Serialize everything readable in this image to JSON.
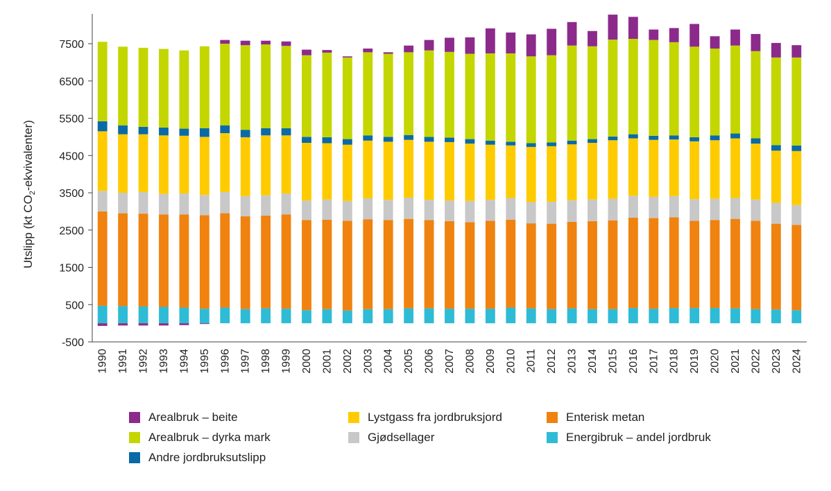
{
  "chart_data": {
    "type": "bar",
    "stacked": true,
    "ylabel_prefix": "Utslipp (kt CO",
    "ylabel_sub": "2",
    "ylabel_suffix": "-ekvivalenter)",
    "xlabel": "",
    "ylim": [
      -500,
      8300
    ],
    "yticks": [
      -500,
      500,
      1500,
      2500,
      3500,
      4500,
      5500,
      6500,
      7500
    ],
    "grid": false,
    "legend_position": "bottom",
    "categories": [
      "1990",
      "1991",
      "1992",
      "1993",
      "1994",
      "1995",
      "1996",
      "1997",
      "1998",
      "1999",
      "2000",
      "2001",
      "2002",
      "2003",
      "2004",
      "2005",
      "2006",
      "2007",
      "2008",
      "2009",
      "2010",
      "2011",
      "2012",
      "2013",
      "2014",
      "2015",
      "2016",
      "2017",
      "2018",
      "2019",
      "2020",
      "2021",
      "2022",
      "2023",
      "2024"
    ],
    "series": [
      {
        "name": "Energibruk – andel jordbruk",
        "color": "#2ebbd6",
        "values": [
          470,
          460,
          450,
          440,
          420,
          390,
          420,
          380,
          400,
          390,
          350,
          380,
          340,
          380,
          380,
          400,
          400,
          390,
          390,
          390,
          420,
          400,
          380,
          400,
          380,
          380,
          410,
          390,
          410,
          410,
          410,
          400,
          380,
          370,
          350
        ]
      },
      {
        "name": "Enterisk metan",
        "color": "#f0820f",
        "values": [
          2530,
          2490,
          2490,
          2480,
          2500,
          2510,
          2530,
          2490,
          2490,
          2530,
          2420,
          2400,
          2410,
          2410,
          2390,
          2400,
          2370,
          2350,
          2320,
          2360,
          2360,
          2280,
          2290,
          2320,
          2360,
          2380,
          2420,
          2430,
          2430,
          2340,
          2360,
          2400,
          2370,
          2300,
          2290
        ]
      },
      {
        "name": "Gjødsellager",
        "color": "#c8c8c8",
        "values": [
          550,
          550,
          580,
          550,
          560,
          540,
          570,
          540,
          540,
          560,
          520,
          540,
          530,
          560,
          540,
          570,
          540,
          550,
          570,
          560,
          580,
          570,
          590,
          580,
          580,
          580,
          590,
          570,
          570,
          580,
          570,
          560,
          570,
          560,
          530
        ]
      },
      {
        "name": "Lystgass fra jordbruksjord",
        "color": "#fecb00",
        "values": [
          1600,
          1570,
          1550,
          1570,
          1550,
          1560,
          1580,
          1580,
          1610,
          1560,
          1550,
          1510,
          1510,
          1550,
          1560,
          1550,
          1560,
          1570,
          1540,
          1480,
          1410,
          1480,
          1490,
          1500,
          1520,
          1570,
          1540,
          1530,
          1520,
          1550,
          1570,
          1600,
          1500,
          1400,
          1450
        ]
      },
      {
        "name": "Andre jordbruksutslipp",
        "color": "#0b6aa6",
        "values": [
          270,
          240,
          200,
          210,
          190,
          230,
          210,
          200,
          190,
          190,
          160,
          160,
          150,
          140,
          130,
          130,
          130,
          120,
          120,
          110,
          100,
          100,
          100,
          100,
          100,
          100,
          110,
          110,
          110,
          110,
          130,
          130,
          140,
          150,
          150
        ]
      },
      {
        "name": "Arealbruk – dyrka mark",
        "color": "#c3d600",
        "values": [
          2130,
          2110,
          2120,
          2110,
          2100,
          2200,
          2190,
          2270,
          2250,
          2210,
          2190,
          2270,
          2190,
          2230,
          2230,
          2220,
          2320,
          2300,
          2290,
          2340,
          2370,
          2330,
          2340,
          2550,
          2490,
          2600,
          2560,
          2570,
          2500,
          2430,
          2330,
          2360,
          2340,
          2350,
          2360
        ]
      },
      {
        "name": "Arealbruk – beite",
        "color": "#8c2a8c",
        "values": [
          0,
          0,
          0,
          0,
          0,
          0,
          100,
          120,
          100,
          120,
          150,
          70,
          30,
          100,
          40,
          180,
          280,
          380,
          440,
          670,
          560,
          590,
          710,
          630,
          410,
          670,
          590,
          280,
          380,
          610,
          330,
          430,
          460,
          390,
          330
        ]
      }
    ],
    "negative_series": {
      "name": "Arealbruk – beite",
      "color": "#8c2a8c",
      "values": [
        -70,
        -60,
        -60,
        -60,
        -50,
        -20,
        0,
        0,
        0,
        0,
        0,
        0,
        0,
        0,
        0,
        0,
        0,
        0,
        0,
        0,
        0,
        0,
        0,
        0,
        0,
        0,
        0,
        0,
        0,
        0,
        0,
        0,
        0,
        0,
        0
      ]
    }
  },
  "legend": {
    "items": [
      {
        "label": "Arealbruk – beite",
        "color": "#8c2a8c"
      },
      {
        "label": "Arealbruk – dyrka mark",
        "color": "#c3d600"
      },
      {
        "label": "Andre jordbruksutslipp",
        "color": "#0b6aa6"
      },
      {
        "label": "Lystgass fra jordbruksjord",
        "color": "#fecb00"
      },
      {
        "label": "Gjødsellager",
        "color": "#c8c8c8"
      },
      {
        "label": "Enterisk metan",
        "color": "#f0820f"
      },
      {
        "label": "Energibruk – andel jordbruk",
        "color": "#2ebbd6"
      }
    ]
  }
}
